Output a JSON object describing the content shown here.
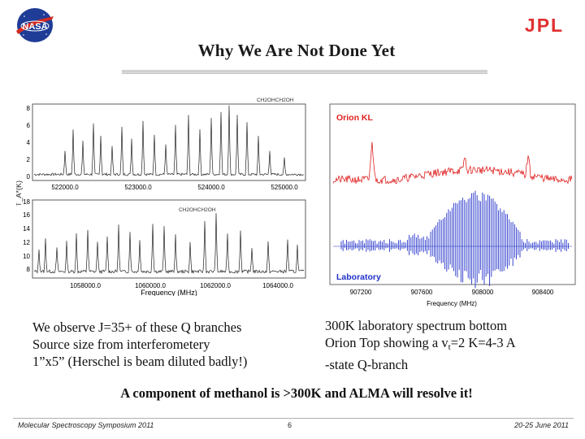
{
  "header": {
    "title": "Why We Are Not Done Yet",
    "nasa_logo_text": "NASA",
    "jpl_logo_text": "JPL"
  },
  "left_figure": {
    "ylabel": "T_A*(K)",
    "xlabel": "Frequency (MHz)",
    "top_panel": {
      "y_ticks": [
        "0",
        "2",
        "4",
        "6",
        "8"
      ],
      "x_ticks": [
        "522000.0",
        "523000.0",
        "524000.0",
        "525000.0"
      ],
      "annotation": "CH2OHCH2OH"
    },
    "bottom_panel": {
      "y_ticks": [
        "8",
        "10",
        "12",
        "14",
        "16",
        "18"
      ],
      "x_ticks": [
        "1058000.0",
        "1060000.0",
        "1062000.0",
        "1064000.0"
      ],
      "annotation": "CH2OHCH2OH"
    }
  },
  "right_figure": {
    "top_label": "Orion KL",
    "bottom_label": "Laboratory",
    "x_ticks": [
      "907200",
      "907600",
      "908000",
      "908400"
    ],
    "xlabel": "Frequency (MHz)",
    "colors": {
      "orion": "#e02020",
      "lab": "#2030c8"
    }
  },
  "left_text": {
    "line1": "We observe J=35+ of these Q branches",
    "line2": "Source size from interferometery",
    "line3": "1”x5” (Herschel is beam diluted badly!)"
  },
  "right_text": {
    "line1": "300K laboratory spectrum bottom",
    "line2_pre": "Orion Top showing a v",
    "line2_sub": "t",
    "line2_post": "=2 K=4-3 A",
    "line3": "-state Q-branch"
  },
  "conclusion": "A component of methanol is >300K and ALMA will resolve it!",
  "footer": {
    "left": "Molecular Spectroscopy Symposium 2011",
    "center": "6",
    "right": "20-25 June 2011"
  }
}
